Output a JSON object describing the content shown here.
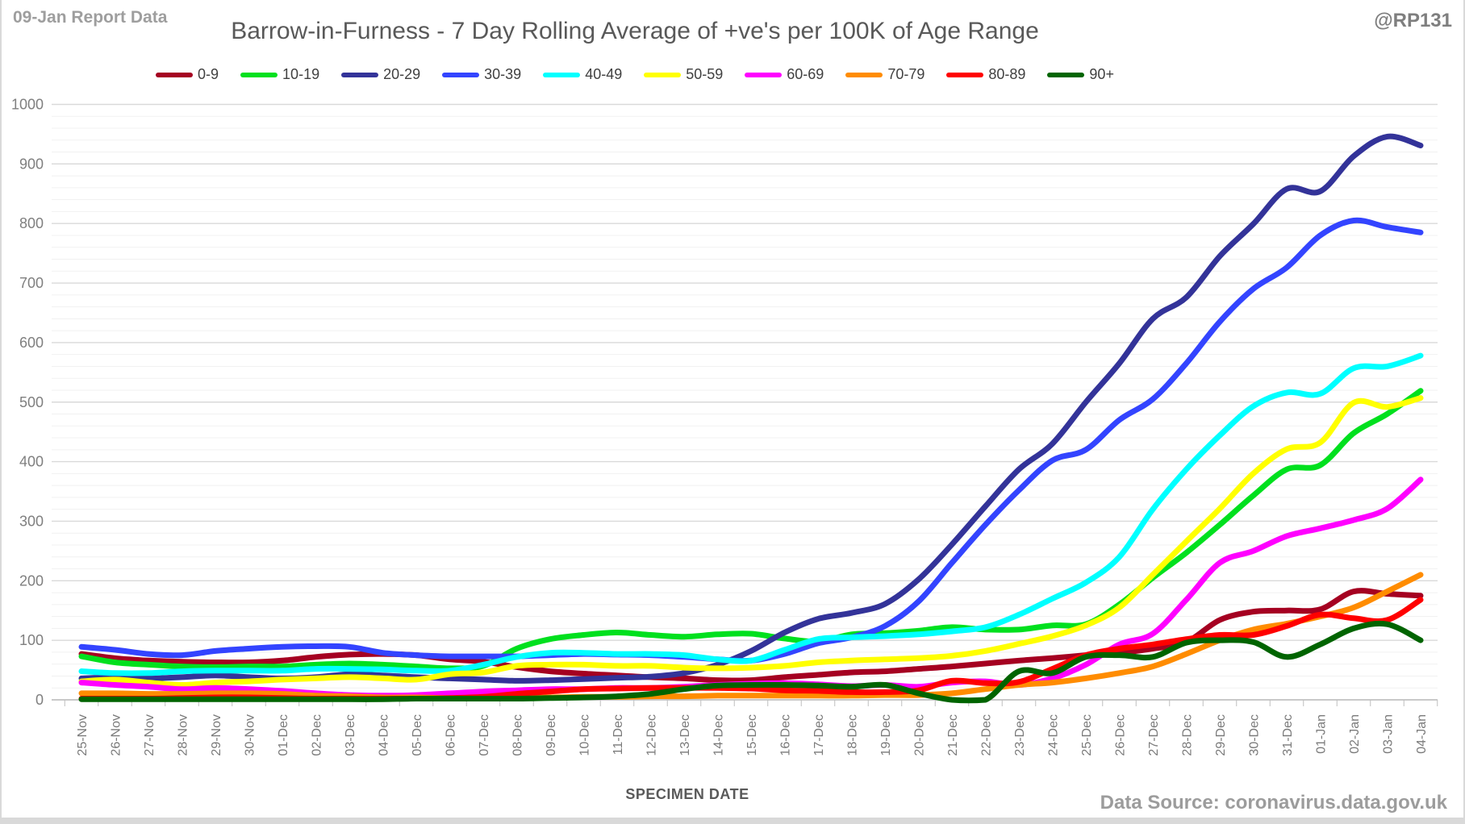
{
  "header": {
    "report_label": "09-Jan Report Data",
    "title": "Barrow-in-Furness - 7 Day Rolling Average of +ve's per 100K of Age Range",
    "handle": "@RP131"
  },
  "footer": {
    "xlabel": "SPECIMEN DATE",
    "source": "Data Source: coronavirus.data.gov.uk"
  },
  "chart_data": {
    "type": "line",
    "title": "Barrow-in-Furness - 7 Day Rolling Average of +ve's per 100K of Age Range",
    "xlabel": "SPECIMEN DATE",
    "ylabel": "",
    "ylim": [
      0,
      1000
    ],
    "y_ticks": [
      0,
      100,
      200,
      300,
      400,
      500,
      600,
      700,
      800,
      900,
      1000
    ],
    "minor_grid_step": 20,
    "grid": "horizontal, light gray major + fainter minor",
    "legend_position": "top",
    "x": [
      "25-Nov",
      "26-Nov",
      "27-Nov",
      "28-Nov",
      "29-Nov",
      "30-Nov",
      "01-Dec",
      "02-Dec",
      "03-Dec",
      "04-Dec",
      "05-Dec",
      "06-Dec",
      "07-Dec",
      "08-Dec",
      "09-Dec",
      "10-Dec",
      "11-Dec",
      "12-Dec",
      "13-Dec",
      "14-Dec",
      "15-Dec",
      "16-Dec",
      "17-Dec",
      "18-Dec",
      "19-Dec",
      "20-Dec",
      "21-Dec",
      "22-Dec",
      "23-Dec",
      "24-Dec",
      "25-Dec",
      "26-Dec",
      "27-Dec",
      "28-Dec",
      "29-Dec",
      "30-Dec",
      "31-Dec",
      "01-Jan",
      "02-Jan",
      "03-Jan",
      "04-Jan"
    ],
    "series": [
      {
        "name": "0-9",
        "color": "#A50021",
        "values": [
          77,
          70,
          66,
          64,
          63,
          63,
          66,
          72,
          76,
          77,
          75,
          68,
          64,
          55,
          48,
          44,
          41,
          38,
          36,
          33,
          33,
          38,
          42,
          46,
          48,
          52,
          56,
          61,
          66,
          70,
          75,
          79,
          86,
          97,
          134,
          148,
          150,
          152,
          182,
          178,
          175
        ]
      },
      {
        "name": "10-19",
        "color": "#00E01E",
        "values": [
          73,
          63,
          59,
          56,
          55,
          56,
          56,
          59,
          61,
          59,
          56,
          53,
          57,
          86,
          102,
          109,
          113,
          109,
          106,
          110,
          111,
          103,
          98,
          110,
          112,
          116,
          122,
          118,
          118,
          125,
          127,
          160,
          205,
          247,
          294,
          343,
          387,
          394,
          448,
          480,
          519
        ]
      },
      {
        "name": "20-29",
        "color": "#333399",
        "values": [
          36,
          38,
          36,
          38,
          41,
          38,
          36,
          38,
          43,
          41,
          38,
          36,
          34,
          32,
          33,
          35,
          37,
          39,
          45,
          59,
          82,
          113,
          136,
          146,
          161,
          202,
          261,
          325,
          387,
          430,
          500,
          565,
          640,
          676,
          745,
          799,
          858,
          854,
          913,
          946,
          931
        ]
      },
      {
        "name": "30-39",
        "color": "#3344FF",
        "values": [
          89,
          84,
          77,
          75,
          82,
          86,
          89,
          90,
          89,
          79,
          75,
          73,
          73,
          73,
          75,
          77,
          76,
          75,
          72,
          68,
          66,
          77,
          95,
          105,
          124,
          165,
          230,
          294,
          352,
          402,
          420,
          470,
          505,
          565,
          635,
          690,
          726,
          780,
          805,
          794,
          785
        ]
      },
      {
        "name": "40-49",
        "color": "#00FFFF",
        "values": [
          48,
          45,
          45,
          48,
          49,
          49,
          49,
          52,
          52,
          51,
          49,
          49,
          59,
          72,
          79,
          79,
          77,
          77,
          75,
          68,
          66,
          84,
          102,
          105,
          107,
          110,
          115,
          122,
          143,
          170,
          197,
          240,
          320,
          387,
          444,
          493,
          516,
          514,
          557,
          560,
          578
        ]
      },
      {
        "name": "50-59",
        "color": "#FFFF00",
        "values": [
          31,
          34,
          29,
          25,
          29,
          31,
          34,
          36,
          38,
          36,
          34,
          43,
          46,
          57,
          59,
          59,
          57,
          57,
          54,
          53,
          54,
          57,
          63,
          66,
          68,
          70,
          74,
          82,
          94,
          107,
          125,
          155,
          210,
          266,
          321,
          380,
          421,
          432,
          499,
          492,
          507
        ]
      },
      {
        "name": "60-69",
        "color": "#FF00FF",
        "values": [
          29,
          25,
          22,
          18,
          20,
          18,
          15,
          11,
          8,
          7,
          8,
          11,
          14,
          16,
          18,
          18,
          20,
          20,
          22,
          25,
          27,
          28,
          26,
          23,
          25,
          22,
          29,
          31,
          25,
          36,
          59,
          93,
          111,
          168,
          230,
          250,
          275,
          288,
          302,
          321,
          370
        ]
      },
      {
        "name": "70-79",
        "color": "#FF8C00",
        "values": [
          11,
          11,
          10,
          10,
          11,
          11,
          10,
          7,
          6,
          4,
          4,
          3,
          3,
          4,
          4,
          5,
          5,
          6,
          6,
          7,
          7,
          7,
          7,
          7,
          8,
          8,
          11,
          18,
          25,
          29,
          36,
          45,
          56,
          77,
          100,
          118,
          128,
          140,
          155,
          182,
          210
        ]
      },
      {
        "name": "80-89",
        "color": "#FF0000",
        "values": [
          2,
          2,
          2,
          3,
          4,
          4,
          3,
          2,
          2,
          2,
          2,
          3,
          5,
          10,
          14,
          18,
          19,
          20,
          20,
          20,
          19,
          16,
          15,
          13,
          13,
          16,
          32,
          28,
          30,
          52,
          75,
          86,
          93,
          102,
          109,
          109,
          124,
          143,
          137,
          134,
          168
        ]
      },
      {
        "name": "90+",
        "color": "#006400",
        "values": [
          1,
          1,
          1,
          1,
          1,
          1,
          1,
          1,
          1,
          1,
          2,
          2,
          2,
          2,
          3,
          4,
          6,
          10,
          18,
          24,
          25,
          25,
          24,
          22,
          25,
          11,
          0,
          0,
          48,
          45,
          72,
          75,
          72,
          96,
          100,
          97,
          72,
          93,
          120,
          127,
          100
        ]
      }
    ]
  }
}
